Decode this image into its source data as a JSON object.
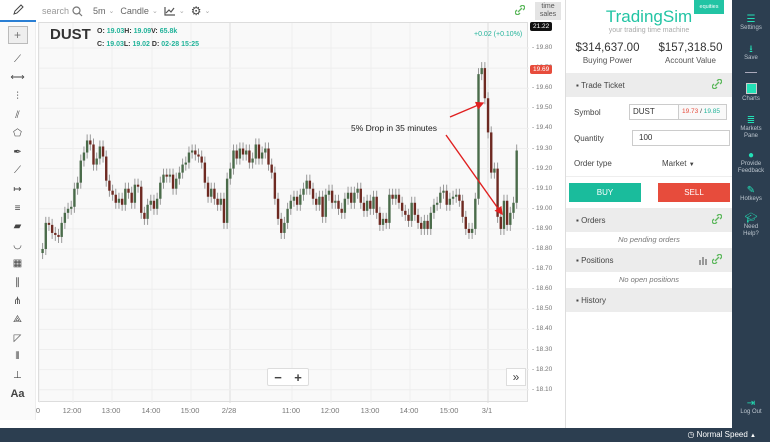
{
  "toolbar": {
    "search_placeholder": "search",
    "interval": "5m",
    "chart_type": "Candle",
    "time_sales_line1": "time",
    "time_sales_line2": "sales"
  },
  "chart": {
    "symbol": "DUST",
    "o_label": "O:",
    "o_value": "19.03",
    "h_label": "H:",
    "h_value": "19.09",
    "v_label": "V:",
    "v_value": "65.8k",
    "c_label": "C:",
    "c_value": "19.03",
    "l_label": "L:",
    "l_value": "19.02",
    "d_label": "D:",
    "d_value": "02-28 15:25",
    "change": "+0.02 (+0.10%)",
    "top_tag": "21.22",
    "price_tag": "19.69",
    "annotation": "5% Drop in 35 minutes",
    "y_ticks": [
      "19.80",
      "19.70",
      "19.60",
      "19.50",
      "19.40",
      "19.30",
      "19.20",
      "19.10",
      "19.00",
      "18.90",
      "18.80",
      "18.70",
      "18.60",
      "18.50",
      "18.40",
      "18.30",
      "18.20",
      "18.10"
    ],
    "x_ticks": [
      {
        "label": "0",
        "x": 0
      },
      {
        "label": "12:00",
        "x": 34
      },
      {
        "label": "13:00",
        "x": 73
      },
      {
        "label": "14:00",
        "x": 113
      },
      {
        "label": "15:00",
        "x": 152
      },
      {
        "label": "2/28",
        "x": 191
      },
      {
        "label": "11:00",
        "x": 253
      },
      {
        "label": "12:00",
        "x": 292
      },
      {
        "label": "13:00",
        "x": 332
      },
      {
        "label": "14:00",
        "x": 371
      },
      {
        "label": "15:00",
        "x": 411
      },
      {
        "label": "3/1",
        "x": 449
      }
    ],
    "zoom_out": "−",
    "zoom_in": "+",
    "fast_forward": "»",
    "colors": {
      "up": "#4a6b4a",
      "down": "#6e2a22",
      "wick": "#999",
      "accent": "#22b39a",
      "tag_red": "#e74c3c"
    }
  },
  "chart_data": {
    "type": "candlestick",
    "ylim": [
      18.05,
      19.85
    ],
    "closes": [
      18.8,
      18.93,
      18.92,
      18.88,
      18.87,
      18.86,
      18.93,
      18.98,
      19.0,
      19.01,
      19.1,
      19.13,
      19.24,
      19.28,
      19.34,
      19.32,
      19.22,
      19.25,
      19.31,
      19.26,
      19.14,
      19.09,
      19.07,
      19.03,
      19.05,
      19.02,
      19.1,
      19.08,
      19.03,
      19.12,
      19.11,
      18.98,
      18.95,
      19.02,
      19.04,
      19.0,
      19.05,
      19.13,
      19.17,
      19.16,
      19.17,
      19.1,
      19.15,
      19.18,
      19.22,
      19.23,
      19.28,
      19.29,
      19.27,
      19.26,
      19.23,
      19.13,
      19.06,
      19.1,
      19.05,
      19.02,
      19.05,
      18.93,
      19.15,
      19.2,
      19.29,
      19.25,
      19.3,
      19.27,
      19.29,
      19.23,
      19.25,
      19.32,
      19.25,
      19.28,
      19.3,
      19.22,
      19.18,
      19.05,
      18.95,
      18.88,
      18.93,
      19.0,
      19.04,
      19.06,
      19.02,
      19.07,
      19.1,
      19.14,
      19.1,
      19.05,
      19.02,
      19.06,
      18.96,
      19.07,
      19.09,
      19.03,
      19.04,
      19.0,
      18.98,
      19.05,
      19.08,
      19.03,
      19.08,
      19.1,
      19.03,
      18.99,
      19.04,
      19.0,
      19.06,
      18.98,
      18.92,
      18.95,
      18.93,
      19.07,
      19.05,
      19.07,
      19.03,
      18.99,
      18.97,
      18.94,
      19.03,
      18.97,
      18.93,
      18.9,
      18.94,
      18.9,
      18.98,
      19.02,
      19.03,
      19.08,
      19.09,
      19.02,
      19.05,
      19.06,
      19.07,
      19.04,
      18.96,
      18.9,
      18.88,
      18.9,
      19.05,
      19.67,
      19.7,
      19.55,
      19.38,
      19.18,
      19.2,
      18.96,
      18.9,
      19.04,
      18.92,
      18.98,
      19.03,
      19.29
    ]
  },
  "sidebar": {
    "brand": "TradingSim",
    "tagline": "your trading time machine",
    "badge": "equities",
    "buying_power_value": "$314,637.00",
    "buying_power_label": "Buying Power",
    "account_value_value": "$157,318.50",
    "account_value_label": "Account Value",
    "trade_ticket_title": "Trade Ticket",
    "symbol_label": "Symbol",
    "symbol_value": "DUST",
    "bid": "19.73",
    "ask": "19.85",
    "quantity_label": "Quantity",
    "quantity_value": "100",
    "order_type_label": "Order type",
    "order_type_value": "Market",
    "buy_label": "BUY",
    "sell_label": "SELL",
    "orders_title": "Orders",
    "orders_empty": "No pending orders",
    "positions_title": "Positions",
    "positions_empty": "No open positions",
    "history_title": "History"
  },
  "rail": {
    "settings": "Settings",
    "save": "Save",
    "charts": "Charts",
    "markets_pane_1": "Markets",
    "markets_pane_2": "Pane",
    "feedback_1": "Provide",
    "feedback_2": "Feedback",
    "hotkeys": "Hotkeys",
    "help_1": "Need",
    "help_2": "Help?",
    "logout": "Log Out"
  },
  "footer": {
    "speed": "Normal Speed"
  }
}
